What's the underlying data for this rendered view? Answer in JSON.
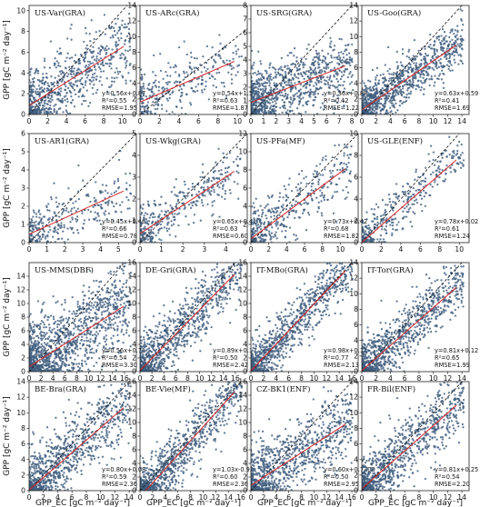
{
  "figure": {
    "ylabel": "GPP [gC m⁻² day⁻¹]",
    "xlabel": "GPP_EC [gC m⁻² day⁻¹]",
    "colors": {
      "points": "#3e5c7e",
      "fit": "#d62728",
      "one_to_one": "#111111"
    }
  },
  "chart_data": [
    {
      "type": "scatter",
      "title": "US-Var(GRA)",
      "xlim": [
        0,
        11.5
      ],
      "ylim": [
        0,
        10.5
      ],
      "xticks": [
        0,
        2,
        4,
        6,
        8,
        10
      ],
      "yticks": [
        0,
        2,
        4,
        6,
        8,
        10
      ],
      "fit": {
        "slope": 0.56,
        "intercept": 0.87
      },
      "r2": 0.55,
      "rmse": 1.95,
      "equation": "y=0.56x+0.87",
      "r2_text": "R²=0.55",
      "rmse_text": "RMSE=1.95",
      "n_points": 700
    },
    {
      "type": "scatter",
      "title": "US-ARc(GRA)",
      "xlim": [
        0,
        11
      ],
      "ylim": [
        0,
        14
      ],
      "xticks": [
        0,
        2,
        4,
        6,
        8,
        10
      ],
      "yticks": [
        0,
        2,
        4,
        6,
        8,
        10,
        12,
        14
      ],
      "fit": {
        "slope": 0.54,
        "intercept": 1.59
      },
      "r2": 0.63,
      "rmse": 1.87,
      "equation": "y=0.54x+1.59",
      "r2_text": "R²=0.63",
      "rmse_text": "RMSE=1.87",
      "n_points": 300
    },
    {
      "type": "scatter",
      "title": "US-SRG(GRA)",
      "xlim": [
        0,
        8.5
      ],
      "ylim": [
        0,
        8
      ],
      "xticks": [
        0,
        1,
        2,
        3,
        4,
        5,
        6,
        7,
        8
      ],
      "yticks": [
        0,
        1,
        2,
        3,
        4,
        5,
        6,
        7,
        8
      ],
      "fit": {
        "slope": 0.36,
        "intercept": 0.88
      },
      "r2": 0.42,
      "rmse": 1.22,
      "equation": "y=0.36x+0.88",
      "r2_text": "R²=0.42",
      "rmse_text": "RMSE=1.22",
      "n_points": 900
    },
    {
      "type": "scatter",
      "title": "US-Goo(GRA)",
      "xlim": [
        0,
        15
      ],
      "ylim": [
        0,
        14
      ],
      "xticks": [
        0,
        2,
        4,
        6,
        8,
        10,
        12,
        14
      ],
      "yticks": [
        0,
        2,
        4,
        6,
        8,
        10,
        12,
        14
      ],
      "fit": {
        "slope": 0.63,
        "intercept": 0.59
      },
      "r2": 0.41,
      "rmse": 1.69,
      "equation": "y=0.63x+0.59",
      "r2_text": "R²=0.41",
      "rmse_text": "RMSE=1.69",
      "n_points": 900
    },
    {
      "type": "scatter",
      "title": "US-AR1(GRA)",
      "xlim": [
        0,
        6
      ],
      "ylim": [
        0,
        6
      ],
      "xticks": [
        0,
        1,
        2,
        3,
        4,
        5
      ],
      "yticks": [
        0,
        1,
        2,
        3,
        4,
        5,
        6
      ],
      "fit": {
        "slope": 0.45,
        "intercept": 0.46
      },
      "r2": 0.66,
      "rmse": 0.78,
      "equation": "y=0.45x+0.46",
      "r2_text": "R²=0.66",
      "rmse_text": "RMSE=0.78",
      "n_points": 300
    },
    {
      "type": "scatter",
      "title": "US-Wkg(GRA)",
      "xlim": [
        0,
        5
      ],
      "ylim": [
        0,
        5
      ],
      "xticks": [
        0,
        1,
        2,
        3,
        4
      ],
      "yticks": [
        0,
        1,
        2,
        3,
        4,
        5
      ],
      "fit": {
        "slope": 0.65,
        "intercept": 0.41
      },
      "r2": 0.63,
      "rmse": 0.6,
      "equation": "y=0.65x+0.41",
      "r2_text": "R²=0.63",
      "rmse_text": "RMSE=0.60",
      "n_points": 350
    },
    {
      "type": "scatter",
      "title": "US-PFa(MF)",
      "xlim": [
        0,
        12
      ],
      "ylim": [
        0,
        12
      ],
      "xticks": [
        0,
        2,
        4,
        6,
        8,
        10
      ],
      "yticks": [
        0,
        2,
        4,
        6,
        8,
        10,
        12
      ],
      "fit": {
        "slope": 0.73,
        "intercept": 0.42
      },
      "r2": 0.68,
      "rmse": 1.82,
      "equation": "y=0.73x+0.42",
      "r2_text": "R²=0.68",
      "rmse_text": "RMSE=1.82",
      "n_points": 400
    },
    {
      "type": "scatter",
      "title": "US-GLE(ENF)",
      "xlim": [
        0,
        11
      ],
      "ylim": [
        0,
        10
      ],
      "xticks": [
        0,
        2,
        4,
        6,
        8,
        10
      ],
      "yticks": [
        0,
        2,
        4,
        6,
        8,
        10
      ],
      "fit": {
        "slope": 0.78,
        "intercept": 0.02
      },
      "r2": 0.61,
      "rmse": 1.24,
      "equation": "y=0.78x+0.02",
      "r2_text": "R²=0.61",
      "rmse_text": "RMSE=1.24",
      "n_points": 350
    },
    {
      "type": "scatter",
      "title": "US-MMS(DBF)",
      "xlim": [
        0,
        18
      ],
      "ylim": [
        0,
        16
      ],
      "xticks": [
        0,
        2,
        4,
        6,
        8,
        10,
        12,
        14,
        16
      ],
      "yticks": [
        0,
        2,
        4,
        6,
        8,
        10,
        12,
        14
      ],
      "fit": {
        "slope": 0.56,
        "intercept": 0.71
      },
      "r2": 0.54,
      "rmse": 3.3,
      "equation": "y=0.56x+0.71",
      "r2_text": "R²=0.54",
      "rmse_text": "RMSE=3.30",
      "n_points": 1200
    },
    {
      "type": "scatter",
      "title": "DE-Gri(GRA)",
      "xlim": [
        0,
        18
      ],
      "ylim": [
        0,
        16
      ],
      "xticks": [
        0,
        2,
        4,
        6,
        8,
        10,
        12,
        14,
        16
      ],
      "yticks": [
        0,
        2,
        4,
        6,
        8,
        10,
        12,
        14,
        16
      ],
      "fit": {
        "slope": 0.89,
        "intercept": 0.17
      },
      "r2": 0.5,
      "rmse": 2.42,
      "equation": "y=0.89x+0.17",
      "r2_text": "R²=0.50",
      "rmse_text": "RMSE=2.42",
      "n_points": 900
    },
    {
      "type": "scatter",
      "title": "IT-MBo(GRA)",
      "xlim": [
        0,
        17
      ],
      "ylim": [
        0,
        16
      ],
      "xticks": [
        0,
        2,
        4,
        6,
        8,
        10,
        12,
        14,
        16
      ],
      "yticks": [
        0,
        2,
        4,
        6,
        8,
        10,
        12,
        14,
        16
      ],
      "fit": {
        "slope": 0.98,
        "intercept": 0.12
      },
      "r2": 0.77,
      "rmse": 2.13,
      "equation": "y=0.98x+0.12",
      "r2_text": "R²=0.77",
      "rmse_text": "RMSE=2.13",
      "n_points": 900
    },
    {
      "type": "scatter",
      "title": "IT-Tor(GRA)",
      "xlim": [
        0,
        15
      ],
      "ylim": [
        0,
        14
      ],
      "xticks": [
        0,
        2,
        4,
        6,
        8,
        10,
        12,
        14
      ],
      "yticks": [
        0,
        2,
        4,
        6,
        8,
        10,
        12,
        14
      ],
      "fit": {
        "slope": 0.81,
        "intercept": 0.12
      },
      "r2": 0.65,
      "rmse": 1.99,
      "equation": "y=0.81x+0.12",
      "r2_text": "R²=0.65",
      "rmse_text": "RMSE=1.99",
      "n_points": 900
    },
    {
      "type": "scatter",
      "title": "BE-Bra(GRA)",
      "xlim": [
        0,
        15
      ],
      "ylim": [
        0,
        14
      ],
      "xticks": [
        0,
        2,
        4,
        6,
        8,
        10,
        12,
        14
      ],
      "yticks": [
        0,
        2,
        4,
        6,
        8,
        10,
        12,
        14
      ],
      "fit": {
        "slope": 0.8,
        "intercept": 0.08
      },
      "r2": 0.59,
      "rmse": 2.36,
      "equation": "y=0.80x+0.08",
      "r2_text": "R²=0.59",
      "rmse_text": "RMSE=2.36",
      "n_points": 900
    },
    {
      "type": "scatter",
      "title": "BE-Vie(MF)",
      "xlim": [
        0,
        17
      ],
      "ylim": [
        0,
        16
      ],
      "xticks": [
        0,
        2,
        4,
        6,
        8,
        10,
        12,
        14,
        16
      ],
      "yticks": [
        0,
        2,
        4,
        6,
        8,
        10,
        12,
        14,
        16
      ],
      "fit": {
        "slope": 1.03,
        "intercept": -0.93
      },
      "r2": 0.6,
      "rmse": 2.36,
      "equation": "y=1.03x-0.93",
      "r2_text": "R²=0.60",
      "rmse_text": "RMSE=2.36",
      "n_points": 900
    },
    {
      "type": "scatter",
      "title": "CZ-BK1(ENF)",
      "xlim": [
        0,
        17
      ],
      "ylim": [
        0,
        16
      ],
      "xticks": [
        0,
        2,
        4,
        6,
        8,
        10,
        12,
        14,
        16
      ],
      "yticks": [
        0,
        2,
        4,
        6,
        8,
        10,
        12,
        14,
        16
      ],
      "fit": {
        "slope": 0.6,
        "intercept": 0.7708
      },
      "r2": 0.5,
      "rmse": 2.95,
      "equation": "y=0.60x+0.7708",
      "r2_text": "R²=0.50",
      "rmse_text": "RMSE=2.95",
      "n_points": 900
    },
    {
      "type": "scatter",
      "title": "FR-Bil(ENF)",
      "xlim": [
        0,
        15
      ],
      "ylim": [
        0,
        14
      ],
      "xticks": [
        0,
        2,
        4,
        6,
        8,
        10,
        12,
        14
      ],
      "yticks": [
        0,
        2,
        4,
        6,
        8,
        10,
        12,
        14
      ],
      "fit": {
        "slope": 0.81,
        "intercept": 0.25
      },
      "r2": 0.54,
      "rmse": 2.2,
      "equation": "y=0.81x+0.25",
      "r2_text": "R²=0.54",
      "rmse_text": "RMSE=2.20",
      "n_points": 900
    }
  ]
}
